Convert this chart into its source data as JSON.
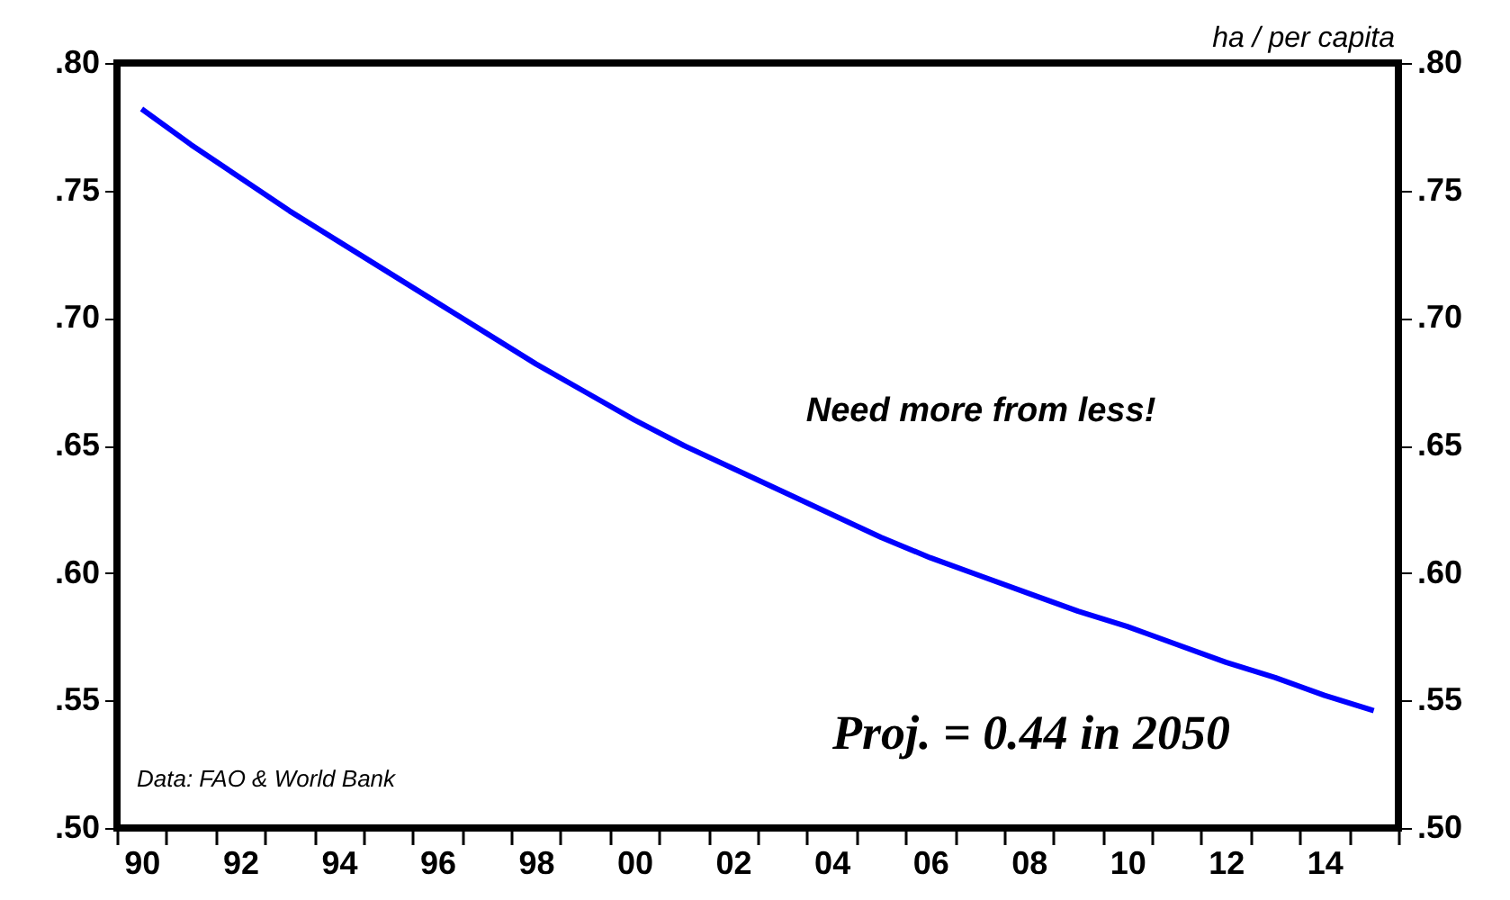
{
  "chart_data": {
    "type": "line",
    "categories": [
      "90",
      null,
      "92",
      null,
      "94",
      null,
      "96",
      null,
      "98",
      null,
      "00",
      null,
      "02",
      null,
      "04",
      null,
      "06",
      null,
      "08",
      null,
      "10",
      null,
      "12",
      null,
      "14",
      null
    ],
    "series": [
      {
        "color": "#0000ff",
        "values": [
          0.782,
          0.768,
          0.755,
          0.742,
          0.73,
          0.718,
          0.706,
          0.694,
          0.682,
          0.671,
          0.66,
          0.65,
          0.641,
          0.632,
          0.623,
          0.614,
          0.606,
          0.599,
          0.592,
          0.585,
          0.579,
          0.572,
          0.565,
          0.559,
          0.552,
          0.546
        ]
      }
    ],
    "ylim": [
      0.5,
      0.8
    ],
    "yticks": [
      {
        "value": 0.5,
        "label": ".50"
      },
      {
        "value": 0.55,
        "label": ".55"
      },
      {
        "value": 0.6,
        "label": ".60"
      },
      {
        "value": 0.65,
        "label": ".65"
      },
      {
        "value": 0.7,
        "label": ".70"
      },
      {
        "value": 0.75,
        "label": ".75"
      },
      {
        "value": 0.8,
        "label": ".80"
      }
    ],
    "y2lim": [
      0.5,
      0.8
    ],
    "y2ticks": [
      {
        "value": 0.5,
        "label": ".50"
      },
      {
        "value": 0.55,
        "label": ".55"
      },
      {
        "value": 0.6,
        "label": ".60"
      },
      {
        "value": 0.65,
        "label": ".65"
      },
      {
        "value": 0.7,
        "label": ".70"
      },
      {
        "value": 0.75,
        "label": ".75"
      },
      {
        "value": 0.8,
        "label": ".80"
      }
    ],
    "y2label": "ha / per capita",
    "annotations": [
      "Need more from less!",
      "Proj. = 0.44 in 2050",
      "Data: FAO & World Bank"
    ],
    "grid": false,
    "marker": "none",
    "line_style": "solid"
  }
}
